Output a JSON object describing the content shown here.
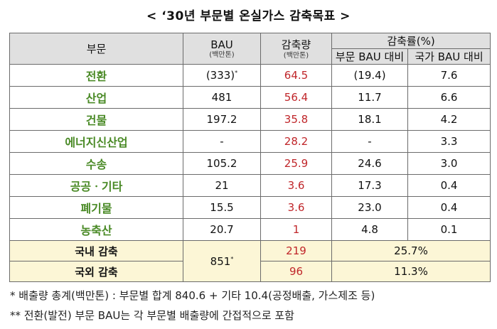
{
  "title": "< ‘30년 부문별 온실가스 감축목표 >",
  "headers": {
    "sector": "부문",
    "bau": "BAU",
    "bau_unit": "(백만톤)",
    "reduction": "감축량",
    "reduction_unit": "(백만톤)",
    "rate": "감축률(%)",
    "rate_sector": "부문 BAU 대비",
    "rate_national": "국가 BAU 대비"
  },
  "rows": [
    {
      "sector": "전환",
      "bau": "(333)",
      "bau_mark": "*",
      "reduction": "64.5",
      "rate_sector": "(19.4)",
      "rate_national": "7.6"
    },
    {
      "sector": "산업",
      "bau": "481",
      "bau_mark": "",
      "reduction": "56.4",
      "rate_sector": "11.7",
      "rate_national": "6.6"
    },
    {
      "sector": "건물",
      "bau": "197.2",
      "bau_mark": "",
      "reduction": "35.8",
      "rate_sector": "18.1",
      "rate_national": "4.2"
    },
    {
      "sector": "에너지신산업",
      "bau": "-",
      "bau_mark": "",
      "reduction": "28.2",
      "rate_sector": "-",
      "rate_national": "3.3"
    },
    {
      "sector": "수송",
      "bau": "105.2",
      "bau_mark": "",
      "reduction": "25.9",
      "rate_sector": "24.6",
      "rate_national": "3.0"
    },
    {
      "sector": "공공ㆍ기타",
      "bau": "21",
      "bau_mark": "",
      "reduction": "3.6",
      "rate_sector": "17.3",
      "rate_national": "0.4"
    },
    {
      "sector": "폐기물",
      "bau": "15.5",
      "bau_mark": "",
      "reduction": "3.6",
      "rate_sector": "23.0",
      "rate_national": "0.4"
    },
    {
      "sector": "농축산",
      "bau": "20.7",
      "bau_mark": "",
      "reduction": "1",
      "rate_sector": "4.8",
      "rate_national": "0.1"
    }
  ],
  "summary": {
    "bau_total": "851",
    "bau_total_mark": "*",
    "domestic": {
      "label": "국내 감축",
      "reduction": "219",
      "rate": "25.7%"
    },
    "overseas": {
      "label": "국외 감축",
      "reduction": "96",
      "rate": "11.3%"
    }
  },
  "notes": [
    "* 배출량 총계(백만톤) : 부문별 합계 840.6 + 기타 10.4(공정배출, 가스제조 등)",
    "** 전환(발전) 부문 BAU는 각 부문별 배출량에 간접적으로 포함"
  ],
  "colors": {
    "sector_text": "#4a8a26",
    "reduction_text": "#c0262a",
    "header_bg": "#e0e0e0",
    "summary_bg": "#fcf6d6"
  }
}
